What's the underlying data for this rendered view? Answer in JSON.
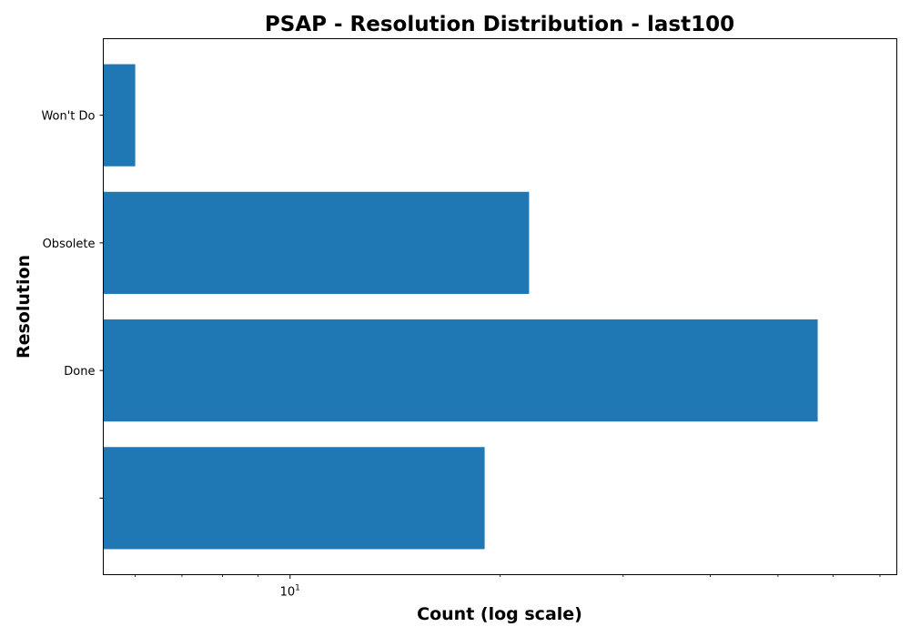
{
  "chart_data": {
    "type": "bar",
    "orientation": "horizontal",
    "title": "PSAP - Resolution Distribution - last100",
    "xlabel": "Count (log scale)",
    "ylabel": "Resolution",
    "x_scale": "log",
    "xlim": [
      5.4,
      74
    ],
    "x_major_ticks": [
      {
        "value": 10,
        "base": "10",
        "exponent": "1"
      }
    ],
    "x_minor_ticks": [
      6,
      7,
      8,
      9,
      20,
      30,
      40,
      50,
      60,
      70
    ],
    "categories": [
      "Won't Do",
      "Obsolete",
      "Done",
      ""
    ],
    "values": [
      6,
      22,
      57,
      19
    ],
    "bar_color": "#1f77b4",
    "grid": false,
    "legend": "none"
  }
}
